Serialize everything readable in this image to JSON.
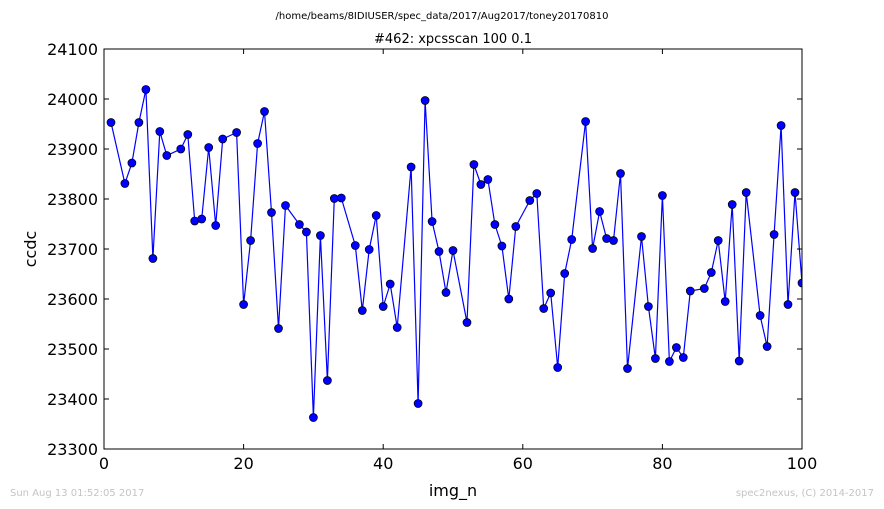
{
  "chart_data": {
    "type": "line",
    "suptitle": "/home/beams/8IDIUSER/spec_data/2017/Aug2017/toney20170810",
    "title": "#462: xpcsscan 100 0.1",
    "xlabel": "img_n",
    "ylabel": "ccdc",
    "xlim": [
      0,
      100
    ],
    "ylim": [
      23300,
      24100
    ],
    "xticks": [
      0,
      20,
      40,
      60,
      80,
      100
    ],
    "yticks": [
      23300,
      23400,
      23500,
      23600,
      23700,
      23800,
      23900,
      24000,
      24100
    ],
    "grid": false,
    "marker": "circle",
    "color": "#0000ff",
    "x": [
      1,
      3,
      4,
      5,
      6,
      7,
      8,
      9,
      11,
      12,
      13,
      14,
      15,
      16,
      17,
      19,
      20,
      21,
      22,
      23,
      24,
      25,
      26,
      28,
      29,
      30,
      31,
      32,
      33,
      34,
      36,
      37,
      38,
      39,
      40,
      41,
      42,
      44,
      45,
      46,
      47,
      48,
      49,
      50,
      52,
      53,
      54,
      55,
      56,
      57,
      58,
      59,
      61,
      62,
      63,
      64,
      65,
      66,
      67,
      69,
      70,
      71,
      72,
      73,
      74,
      75,
      77,
      78,
      79,
      80,
      81,
      82,
      83,
      84,
      86,
      87,
      88,
      89,
      90,
      91,
      92,
      94,
      95,
      96,
      97,
      98,
      99,
      100
    ],
    "y": [
      23953,
      23831,
      23872,
      23953,
      24019,
      23681,
      23935,
      23887,
      23900,
      23929,
      23756,
      23760,
      23903,
      23747,
      23920,
      23933,
      23589,
      23717,
      23911,
      23975,
      23773,
      23541,
      23787,
      23749,
      23734,
      23363,
      23727,
      23437,
      23801,
      23802,
      23707,
      23577,
      23699,
      23767,
      23585,
      23630,
      23543,
      23864,
      23391,
      23997,
      23755,
      23695,
      23613,
      23697,
      23553,
      23869,
      23829,
      23839,
      23749,
      23706,
      23600,
      23745,
      23797,
      23811,
      23581,
      23612,
      23463,
      23651,
      23719,
      23955,
      23701,
      23775,
      23721,
      23717,
      23851,
      23461,
      23725,
      23585,
      23481,
      23807,
      23475,
      23503,
      23483,
      23616,
      23621,
      23653,
      23717,
      23595,
      23789,
      23476,
      23813,
      23567,
      23505,
      23729,
      23947,
      23589,
      23813,
      23632
    ]
  },
  "footer": {
    "timestamp": "Sun Aug 13 01:52:05 2017",
    "credit": "spec2nexus, (C) 2014-2017"
  }
}
